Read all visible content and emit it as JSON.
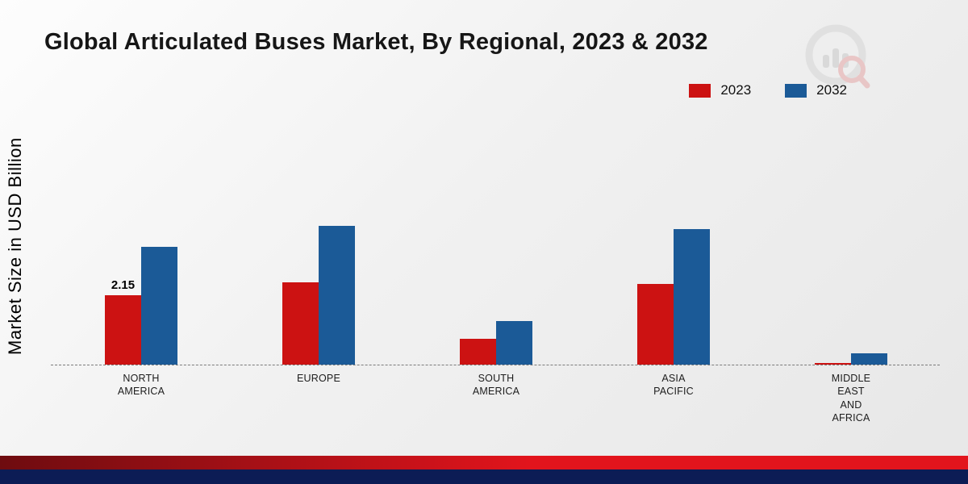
{
  "title": "Global Articulated Buses Market, By Regional, 2023 & 2032",
  "ylabel": "Market Size in USD Billion",
  "legend": [
    {
      "label": "2023",
      "color": "#cc1212"
    },
    {
      "label": "2032",
      "color": "#1b5a97"
    }
  ],
  "annotation": {
    "text": "2.15",
    "series": "2023",
    "category": "NORTH AMERICA"
  },
  "chart_data": {
    "type": "bar",
    "categories": [
      "NORTH AMERICA",
      "EUROPE",
      "SOUTH AMERICA",
      "ASIA PACIFIC",
      "MIDDLE EAST AND AFRICA"
    ],
    "series": [
      {
        "name": "2023",
        "color": "#cc1212",
        "values": [
          2.15,
          2.55,
          0.8,
          2.5,
          0.05
        ]
      },
      {
        "name": "2032",
        "color": "#1b5a97",
        "values": [
          3.65,
          4.3,
          1.35,
          4.2,
          0.35
        ]
      }
    ],
    "title": "Global Articulated Buses Market, By Regional, 2023 & 2032",
    "xlabel": "",
    "ylabel": "Market Size in USD Billion",
    "ylim": [
      0,
      4.5
    ],
    "grid": false,
    "legend_position": "top-right",
    "baseline": "dashed"
  },
  "decor": {
    "strip_red_gradient_start": "#6e0c10",
    "strip_red_gradient_end": "#e2141c",
    "strip_navy": "#0c1c55",
    "background_start": "#fdfdfd",
    "background_end": "#e7e7e7"
  }
}
